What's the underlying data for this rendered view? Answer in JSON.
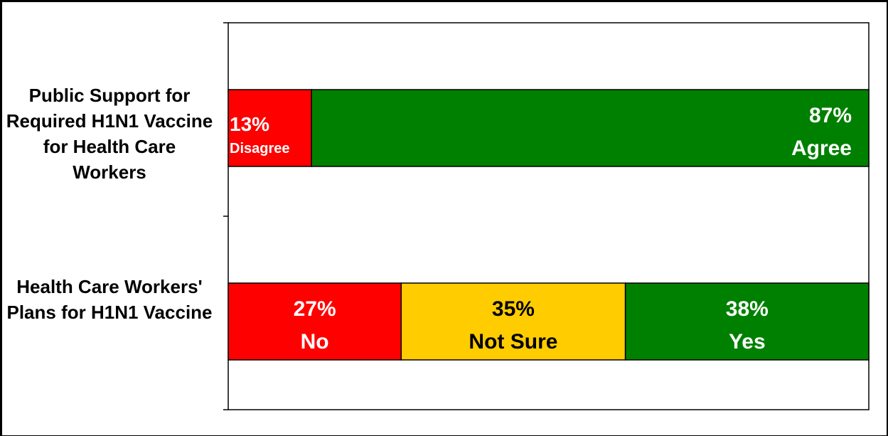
{
  "chart_data": {
    "type": "bar",
    "orientation": "horizontal",
    "stacked": true,
    "percent_stacked": true,
    "categories": [
      "Public Support for Required H1N1 Vaccine for Health Care Workers",
      "Health Care Workers' Plans for H1N1 Vaccine"
    ],
    "xlim": [
      0,
      100
    ],
    "grid": false,
    "legend": "none",
    "bars": [
      {
        "category": "Public Support for Required H1N1 Vaccine for Health Care Workers",
        "segments": [
          {
            "value": 13,
            "percent_label": "13%",
            "name_label": "Disagree",
            "color": "#ff0000"
          },
          {
            "value": 87,
            "percent_label": "87%",
            "name_label": "Agree",
            "color": "#008000"
          }
        ]
      },
      {
        "category": "Health Care Workers' Plans for H1N1 Vaccine",
        "segments": [
          {
            "value": 27,
            "percent_label": "27%",
            "name_label": "No",
            "color": "#ff0000"
          },
          {
            "value": 35,
            "percent_label": "35%",
            "name_label": "Not Sure",
            "color": "#ffcc00"
          },
          {
            "value": 38,
            "percent_label": "38%",
            "name_label": "Yes",
            "color": "#008000"
          }
        ]
      }
    ]
  }
}
